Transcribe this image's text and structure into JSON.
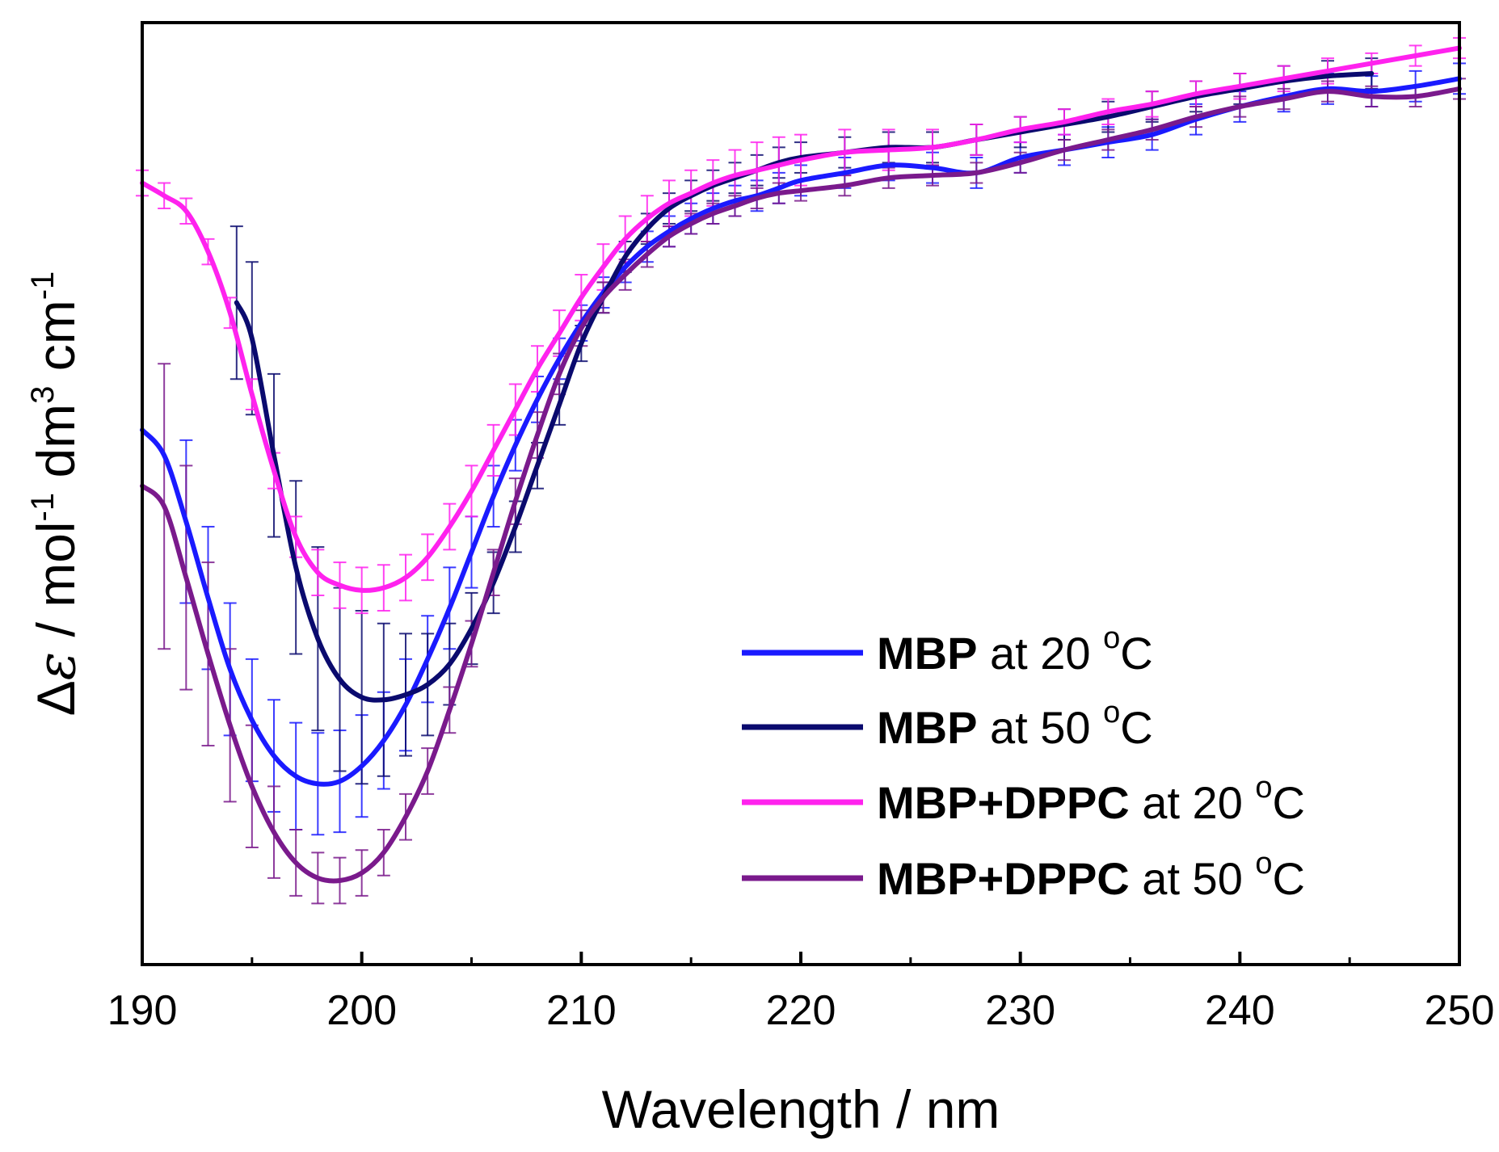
{
  "chart_data": {
    "type": "line",
    "title": "",
    "xlabel": "Wavelength / nm",
    "ylabel_parts": {
      "delta": "Δ",
      "epsilon": "ε",
      "rest1": " / mol",
      "sup1": "-1",
      "rest2": " dm",
      "sup2": "3",
      "rest3": " cm",
      "sup3": "-1"
    },
    "xlim": [
      190,
      250
    ],
    "ylim": [
      -12,
      6.5
    ],
    "y_ticks_labeled": false,
    "x_ticks": [
      190,
      200,
      210,
      220,
      230,
      240,
      250
    ],
    "x_tick_labels": [
      "190",
      "200",
      "210",
      "220",
      "230",
      "240",
      "250"
    ],
    "x_minor_ticks": [
      195,
      205,
      215,
      225,
      235,
      245
    ],
    "legend_position": "bottom-right",
    "series": [
      {
        "name": "MBP at 20 °C",
        "label_bold": "MBP",
        "label_rest": " at 20 ",
        "label_sup": "o",
        "label_unit": "C",
        "color": "#1a1aff",
        "x": [
          190,
          191,
          192,
          193,
          194,
          195,
          196,
          197,
          198,
          199,
          200,
          201,
          202,
          203,
          204,
          205,
          206,
          207,
          208,
          209,
          210,
          211,
          212,
          213,
          214,
          215,
          216,
          217,
          218,
          219,
          220,
          222,
          224,
          226,
          228,
          230,
          232,
          234,
          236,
          238,
          240,
          242,
          244,
          246,
          248,
          250
        ],
        "y": [
          -1.5,
          -2.0,
          -3.3,
          -4.8,
          -6.2,
          -7.2,
          -7.9,
          -8.3,
          -8.45,
          -8.4,
          -8.1,
          -7.6,
          -6.9,
          -6.0,
          -5.0,
          -3.9,
          -2.8,
          -1.8,
          -0.9,
          -0.1,
          0.6,
          1.2,
          1.7,
          2.1,
          2.4,
          2.65,
          2.85,
          3.0,
          3.1,
          3.25,
          3.4,
          3.55,
          3.7,
          3.65,
          3.55,
          3.85,
          4.0,
          4.15,
          4.3,
          4.6,
          4.85,
          5.05,
          5.2,
          5.15,
          5.25,
          5.4
        ],
        "err": [
          0.0,
          1.8,
          1.6,
          1.4,
          1.3,
          1.2,
          1.1,
          1.05,
          1.0,
          1.0,
          1.0,
          0.95,
          0.9,
          0.85,
          0.8,
          0.7,
          0.6,
          0.5,
          0.45,
          0.4,
          0.35,
          0.3,
          0.3,
          0.3,
          0.3,
          0.3,
          0.3,
          0.3,
          0.3,
          0.3,
          0.3,
          0.3,
          0.3,
          0.3,
          0.3,
          0.3,
          0.3,
          0.3,
          0.3,
          0.3,
          0.3,
          0.3,
          0.3,
          0.3,
          0.3,
          0.3
        ],
        "err_from": 192,
        "err_to": 0
      },
      {
        "name": "MBP at 50 °C",
        "label_bold": "MBP",
        "label_rest": " at 50 ",
        "label_sup": "o",
        "label_unit": "C",
        "color": "#0a0a6e",
        "x": [
          194.3,
          195,
          196,
          197,
          198,
          199,
          200,
          201,
          202,
          203,
          204,
          205,
          206,
          207,
          208,
          209,
          210,
          211,
          212,
          213,
          214,
          215,
          216,
          217,
          218,
          219,
          220,
          222,
          224,
          226,
          228,
          230,
          232,
          234,
          236,
          238,
          240,
          242,
          244,
          246
        ],
        "y": [
          1.0,
          0.3,
          -2.0,
          -4.2,
          -5.6,
          -6.4,
          -6.75,
          -6.8,
          -6.7,
          -6.5,
          -6.1,
          -5.4,
          -4.5,
          -3.4,
          -2.2,
          -1.0,
          0.2,
          1.1,
          1.9,
          2.45,
          2.85,
          3.1,
          3.3,
          3.45,
          3.6,
          3.75,
          3.85,
          3.95,
          4.05,
          4.05,
          4.2,
          4.35,
          4.5,
          4.65,
          4.85,
          5.05,
          5.2,
          5.35,
          5.45,
          5.5
        ],
        "err": [
          1.5,
          1.5,
          1.6,
          1.7,
          1.8,
          1.8,
          1.7,
          1.5,
          1.2,
          1.0,
          0.8,
          0.7,
          0.6,
          0.5,
          0.45,
          0.4,
          0.35,
          0.3,
          0.3,
          0.3,
          0.3,
          0.3,
          0.3,
          0.3,
          0.3,
          0.3,
          0.3,
          0.3,
          0.3,
          0.3,
          0.3,
          0.3,
          0.3,
          0.3,
          0.3,
          0.3,
          0.3,
          0.3,
          0.3,
          0.3
        ],
        "err_from": 194,
        "err_to": 0
      },
      {
        "name": "MBP+DPPC at 20 °C",
        "label_bold": "MBP+DPPC",
        "label_rest": " at 20 ",
        "label_sup": "o",
        "label_unit": "C",
        "color": "#ff22ee",
        "x": [
          190,
          191,
          192,
          193,
          194,
          195,
          196,
          197,
          198,
          199,
          200,
          201,
          202,
          203,
          204,
          205,
          206,
          207,
          208,
          209,
          210,
          211,
          212,
          213,
          214,
          215,
          216,
          217,
          218,
          219,
          220,
          222,
          224,
          226,
          228,
          230,
          232,
          234,
          236,
          238,
          240,
          242,
          244,
          246,
          248,
          250
        ],
        "y": [
          3.35,
          3.1,
          2.8,
          2.0,
          0.8,
          -0.8,
          -2.3,
          -3.6,
          -4.3,
          -4.55,
          -4.65,
          -4.6,
          -4.4,
          -4.0,
          -3.4,
          -2.7,
          -1.9,
          -1.1,
          -0.3,
          0.4,
          1.1,
          1.7,
          2.25,
          2.65,
          2.95,
          3.15,
          3.35,
          3.5,
          3.6,
          3.7,
          3.8,
          3.95,
          4.0,
          4.05,
          4.2,
          4.4,
          4.55,
          4.75,
          4.9,
          5.1,
          5.25,
          5.4,
          5.55,
          5.7,
          5.85,
          6.0
        ],
        "err": [
          0.25,
          0.25,
          0.25,
          0.25,
          0.3,
          0.3,
          0.35,
          0.4,
          0.45,
          0.45,
          0.45,
          0.45,
          0.45,
          0.45,
          0.45,
          0.5,
          0.5,
          0.5,
          0.45,
          0.45,
          0.45,
          0.45,
          0.45,
          0.45,
          0.45,
          0.45,
          0.45,
          0.5,
          0.55,
          0.55,
          0.5,
          0.45,
          0.4,
          0.35,
          0.3,
          0.25,
          0.25,
          0.25,
          0.25,
          0.25,
          0.25,
          0.25,
          0.25,
          0.2,
          0.2,
          0.2
        ],
        "err_from": 190,
        "err_to": 0
      },
      {
        "name": "MBP+DPPC at 50 °C",
        "label_bold": "MBP+DPPC",
        "label_rest": " at 50 ",
        "label_sup": "o",
        "label_unit": "C",
        "color": "#7a1a8c",
        "x": [
          190,
          191,
          192,
          193,
          194,
          195,
          196,
          197,
          198,
          199,
          200,
          201,
          202,
          203,
          204,
          205,
          206,
          207,
          208,
          209,
          210,
          211,
          212,
          213,
          214,
          215,
          216,
          217,
          218,
          219,
          220,
          222,
          224,
          226,
          228,
          230,
          232,
          234,
          236,
          238,
          240,
          242,
          244,
          246,
          248,
          250
        ],
        "y": [
          -2.6,
          -3.0,
          -4.4,
          -5.9,
          -7.3,
          -8.5,
          -9.4,
          -10.0,
          -10.3,
          -10.35,
          -10.2,
          -9.8,
          -9.1,
          -8.2,
          -7.0,
          -5.7,
          -4.3,
          -2.9,
          -1.6,
          -0.4,
          0.5,
          1.1,
          1.55,
          1.95,
          2.3,
          2.55,
          2.75,
          2.9,
          3.05,
          3.15,
          3.2,
          3.3,
          3.45,
          3.5,
          3.55,
          3.75,
          4.0,
          4.2,
          4.4,
          4.65,
          4.85,
          5.0,
          5.15,
          5.05,
          5.05,
          5.2
        ],
        "err": [
          0.0,
          2.8,
          2.2,
          1.8,
          1.5,
          1.2,
          0.9,
          0.65,
          0.5,
          0.45,
          0.45,
          0.45,
          0.45,
          0.45,
          0.45,
          0.45,
          0.45,
          0.45,
          0.45,
          0.4,
          0.35,
          0.3,
          0.3,
          0.25,
          0.2,
          0.2,
          0.2,
          0.2,
          0.2,
          0.2,
          0.2,
          0.2,
          0.2,
          0.2,
          0.2,
          0.2,
          0.2,
          0.2,
          0.2,
          0.2,
          0.2,
          0.2,
          0.2,
          0.2,
          0.2,
          0.2
        ],
        "err_from": 191,
        "err_to": 0
      }
    ]
  }
}
